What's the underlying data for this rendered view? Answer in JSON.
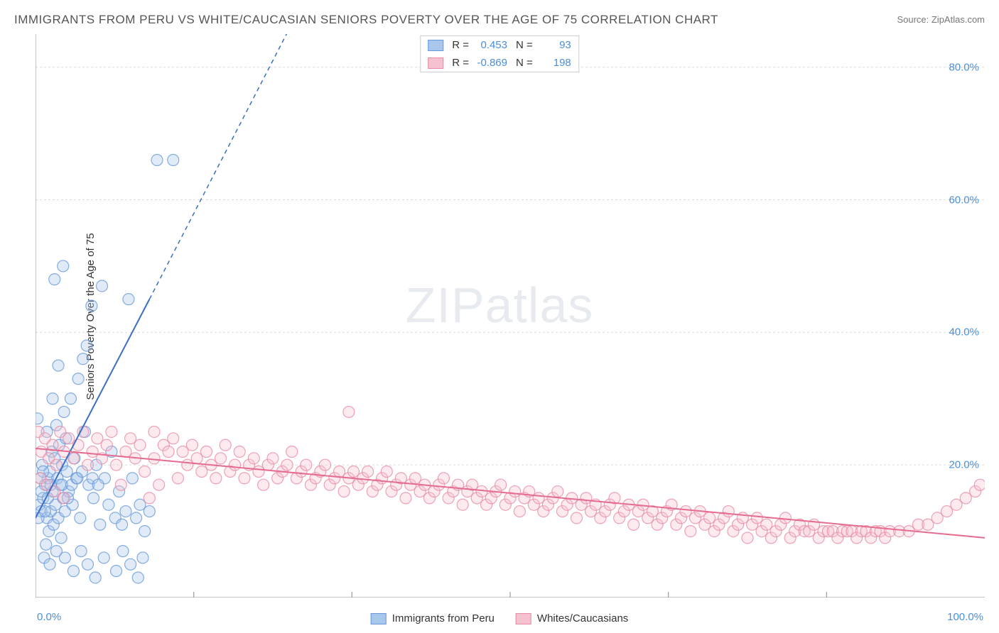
{
  "title": "IMMIGRANTS FROM PERU VS WHITE/CAUCASIAN SENIORS POVERTY OVER THE AGE OF 75 CORRELATION CHART",
  "source": "Source: ZipAtlas.com",
  "ylabel": "Seniors Poverty Over the Age of 75",
  "watermark_zip": "ZIP",
  "watermark_atlas": "atlas",
  "chart": {
    "type": "scatter",
    "background_color": "#ffffff",
    "grid_color": "#dcdcdc",
    "grid_dash": "3,3",
    "axis_color": "#888888",
    "xlim": [
      0,
      100
    ],
    "ylim": [
      0,
      85
    ],
    "x_min_label": "0.0%",
    "x_max_label": "100.0%",
    "yticks": [
      20,
      40,
      60,
      80
    ],
    "ytick_labels": [
      "20.0%",
      "40.0%",
      "60.0%",
      "80.0%"
    ],
    "xticks_minor": [
      16.67,
      33.33,
      50,
      66.67,
      83.33
    ],
    "marker_radius": 8,
    "marker_fill_opacity": 0.35,
    "marker_stroke_opacity": 0.8,
    "marker_stroke_width": 1.2,
    "trend_line_width": 2,
    "trend_dash_extrapolate": "6,5"
  },
  "series": [
    {
      "id": "peru",
      "label": "Immigrants from Peru",
      "color_fill": "#a9c7ec",
      "color_stroke": "#6699d8",
      "trend_color": "#3b6fc0",
      "R": "0.453",
      "N": "93",
      "trend": {
        "x1": 0,
        "y1": 12,
        "x2_solid": 12,
        "y2_solid": 45,
        "x2_dash": 38,
        "y2_dash": 117
      },
      "points": [
        [
          0.4,
          14
        ],
        [
          0.6,
          13
        ],
        [
          0.8,
          15
        ],
        [
          1.0,
          17
        ],
        [
          1.2,
          12
        ],
        [
          1.3,
          18
        ],
        [
          1.4,
          10
        ],
        [
          1.5,
          19
        ],
        [
          1.6,
          13
        ],
        [
          1.7,
          22
        ],
        [
          1.8,
          16
        ],
        [
          1.9,
          11
        ],
        [
          2.0,
          21
        ],
        [
          2.1,
          14
        ],
        [
          2.2,
          26
        ],
        [
          2.3,
          18
        ],
        [
          2.4,
          12
        ],
        [
          2.5,
          23
        ],
        [
          2.6,
          17
        ],
        [
          2.7,
          9
        ],
        [
          2.8,
          20
        ],
        [
          2.9,
          15
        ],
        [
          3.0,
          28
        ],
        [
          3.1,
          13
        ],
        [
          3.2,
          24
        ],
        [
          3.3,
          19
        ],
        [
          3.5,
          16
        ],
        [
          3.7,
          30
        ],
        [
          3.9,
          14
        ],
        [
          4.1,
          21
        ],
        [
          4.3,
          18
        ],
        [
          4.5,
          33
        ],
        [
          4.7,
          12
        ],
        [
          5.0,
          36
        ],
        [
          5.2,
          25
        ],
        [
          5.4,
          38
        ],
        [
          5.6,
          17
        ],
        [
          5.9,
          44
        ],
        [
          6.1,
          15
        ],
        [
          6.4,
          20
        ],
        [
          6.8,
          11
        ],
        [
          7.0,
          47
        ],
        [
          7.3,
          18
        ],
        [
          7.7,
          14
        ],
        [
          8.0,
          22
        ],
        [
          8.4,
          12
        ],
        [
          8.8,
          16
        ],
        [
          9.1,
          11
        ],
        [
          9.5,
          13
        ],
        [
          9.8,
          45
        ],
        [
          10.2,
          18
        ],
        [
          10.6,
          12
        ],
        [
          11.0,
          14
        ],
        [
          11.5,
          10
        ],
        [
          12.0,
          13
        ],
        [
          12.8,
          66
        ],
        [
          14.5,
          66
        ],
        [
          1.1,
          8
        ],
        [
          0.9,
          6
        ],
        [
          1.5,
          5
        ],
        [
          2.2,
          7
        ],
        [
          3.1,
          6
        ],
        [
          4.0,
          4
        ],
        [
          4.8,
          7
        ],
        [
          5.5,
          5
        ],
        [
          6.3,
          3
        ],
        [
          7.2,
          6
        ],
        [
          8.5,
          4
        ],
        [
          9.2,
          7
        ],
        [
          10.0,
          5
        ],
        [
          10.8,
          3
        ],
        [
          11.3,
          6
        ],
        [
          2.0,
          48
        ],
        [
          2.4,
          35
        ],
        [
          2.9,
          50
        ],
        [
          1.8,
          30
        ],
        [
          1.2,
          25
        ],
        [
          0.7,
          20
        ],
        [
          0.5,
          18
        ],
        [
          0.3,
          12
        ],
        [
          0.6,
          16
        ],
        [
          0.8,
          19
        ],
        [
          1.0,
          13
        ],
        [
          1.3,
          15
        ],
        [
          1.6,
          17
        ],
        [
          0.2,
          27
        ],
        [
          2.8,
          17
        ],
        [
          3.4,
          15
        ],
        [
          3.8,
          17
        ],
        [
          4.4,
          18
        ],
        [
          4.9,
          19
        ],
        [
          6.0,
          18
        ],
        [
          6.6,
          17
        ]
      ]
    },
    {
      "id": "white",
      "label": "Whites/Caucasians",
      "color_fill": "#f6c2cf",
      "color_stroke": "#e88ba5",
      "trend_color": "#e56b8f",
      "R": "-0.869",
      "N": "198",
      "trend": {
        "x1": 0,
        "y1": 22.5,
        "x2_solid": 100,
        "y2_solid": 9,
        "x2_dash": 100,
        "y2_dash": 9
      },
      "points": [
        [
          0.3,
          25
        ],
        [
          0.6,
          22
        ],
        [
          1.0,
          24
        ],
        [
          1.4,
          21
        ],
        [
          1.8,
          23
        ],
        [
          2.2,
          20
        ],
        [
          2.6,
          25
        ],
        [
          3.0,
          22
        ],
        [
          3.5,
          24
        ],
        [
          4.0,
          21
        ],
        [
          4.5,
          23
        ],
        [
          5.0,
          25
        ],
        [
          5.5,
          20
        ],
        [
          6.0,
          22
        ],
        [
          6.5,
          24
        ],
        [
          7.0,
          21
        ],
        [
          7.5,
          23
        ],
        [
          8.0,
          25
        ],
        [
          8.5,
          20
        ],
        [
          9.0,
          17
        ],
        [
          9.5,
          22
        ],
        [
          10.0,
          24
        ],
        [
          10.5,
          21
        ],
        [
          11.0,
          23
        ],
        [
          11.5,
          19
        ],
        [
          12.0,
          15
        ],
        [
          12.5,
          21
        ],
        [
          13.0,
          17
        ],
        [
          13.5,
          23
        ],
        [
          14.0,
          22
        ],
        [
          14.5,
          24
        ],
        [
          15.0,
          18
        ],
        [
          15.5,
          22
        ],
        [
          16.0,
          20
        ],
        [
          16.5,
          23
        ],
        [
          17.0,
          21
        ],
        [
          17.5,
          19
        ],
        [
          18.0,
          22
        ],
        [
          18.5,
          20
        ],
        [
          19.0,
          18
        ],
        [
          19.5,
          21
        ],
        [
          20.0,
          23
        ],
        [
          20.5,
          19
        ],
        [
          21.0,
          20
        ],
        [
          21.5,
          22
        ],
        [
          22.0,
          18
        ],
        [
          22.5,
          20
        ],
        [
          23.0,
          21
        ],
        [
          23.5,
          19
        ],
        [
          24.0,
          17
        ],
        [
          24.5,
          20
        ],
        [
          25.0,
          21
        ],
        [
          25.5,
          18
        ],
        [
          26.0,
          19
        ],
        [
          26.5,
          20
        ],
        [
          27.0,
          22
        ],
        [
          27.5,
          18
        ],
        [
          28.0,
          19
        ],
        [
          28.5,
          20
        ],
        [
          29.0,
          17
        ],
        [
          29.5,
          18
        ],
        [
          30.0,
          19
        ],
        [
          30.5,
          20
        ],
        [
          31.0,
          17
        ],
        [
          31.5,
          18
        ],
        [
          32.0,
          19
        ],
        [
          32.5,
          16
        ],
        [
          33.0,
          18
        ],
        [
          33.5,
          19
        ],
        [
          34.0,
          17
        ],
        [
          34.5,
          18
        ],
        [
          35.0,
          19
        ],
        [
          35.5,
          16
        ],
        [
          36.0,
          17
        ],
        [
          36.5,
          18
        ],
        [
          37.0,
          19
        ],
        [
          37.5,
          16
        ],
        [
          38.0,
          17
        ],
        [
          38.5,
          18
        ],
        [
          39.0,
          15
        ],
        [
          39.5,
          17
        ],
        [
          40.0,
          18
        ],
        [
          40.5,
          16
        ],
        [
          41.0,
          17
        ],
        [
          41.5,
          15
        ],
        [
          42.0,
          16
        ],
        [
          42.5,
          17
        ],
        [
          43.0,
          18
        ],
        [
          43.5,
          15
        ],
        [
          44.0,
          16
        ],
        [
          44.5,
          17
        ],
        [
          45.0,
          14
        ],
        [
          45.5,
          16
        ],
        [
          46.0,
          17
        ],
        [
          46.5,
          15
        ],
        [
          47.0,
          16
        ],
        [
          47.5,
          14
        ],
        [
          48.0,
          15
        ],
        [
          48.5,
          16
        ],
        [
          49.0,
          17
        ],
        [
          49.5,
          14
        ],
        [
          50.0,
          15
        ],
        [
          50.5,
          16
        ],
        [
          51.0,
          13
        ],
        [
          51.5,
          15
        ],
        [
          52.0,
          16
        ],
        [
          52.5,
          14
        ],
        [
          53.0,
          15
        ],
        [
          53.5,
          13
        ],
        [
          54.0,
          14
        ],
        [
          54.5,
          15
        ],
        [
          55.0,
          16
        ],
        [
          55.5,
          13
        ],
        [
          56.0,
          14
        ],
        [
          56.5,
          15
        ],
        [
          57.0,
          12
        ],
        [
          57.5,
          14
        ],
        [
          58.0,
          15
        ],
        [
          58.5,
          13
        ],
        [
          59.0,
          14
        ],
        [
          59.5,
          12
        ],
        [
          60.0,
          13
        ],
        [
          60.5,
          14
        ],
        [
          61.0,
          15
        ],
        [
          61.5,
          12
        ],
        [
          62.0,
          13
        ],
        [
          62.5,
          14
        ],
        [
          63.0,
          11
        ],
        [
          63.5,
          13
        ],
        [
          64.0,
          14
        ],
        [
          64.5,
          12
        ],
        [
          65.0,
          13
        ],
        [
          65.5,
          11
        ],
        [
          66.0,
          12
        ],
        [
          66.5,
          13
        ],
        [
          67.0,
          14
        ],
        [
          67.5,
          11
        ],
        [
          68.0,
          12
        ],
        [
          68.5,
          13
        ],
        [
          69.0,
          10
        ],
        [
          69.5,
          12
        ],
        [
          70.0,
          13
        ],
        [
          70.5,
          11
        ],
        [
          71.0,
          12
        ],
        [
          71.5,
          10
        ],
        [
          72.0,
          11
        ],
        [
          72.5,
          12
        ],
        [
          73.0,
          13
        ],
        [
          73.5,
          10
        ],
        [
          74.0,
          11
        ],
        [
          74.5,
          12
        ],
        [
          75.0,
          9
        ],
        [
          75.5,
          11
        ],
        [
          76.0,
          12
        ],
        [
          76.5,
          10
        ],
        [
          77.0,
          11
        ],
        [
          77.5,
          9
        ],
        [
          78.0,
          10
        ],
        [
          78.5,
          11
        ],
        [
          79.0,
          12
        ],
        [
          79.5,
          9
        ],
        [
          80.0,
          10
        ],
        [
          80.5,
          11
        ],
        [
          81.0,
          10
        ],
        [
          81.5,
          10
        ],
        [
          82.0,
          11
        ],
        [
          82.5,
          9
        ],
        [
          83.0,
          10
        ],
        [
          83.5,
          10
        ],
        [
          84.0,
          10
        ],
        [
          84.5,
          9
        ],
        [
          85.0,
          10
        ],
        [
          85.5,
          10
        ],
        [
          86.0,
          10
        ],
        [
          86.5,
          9
        ],
        [
          87.0,
          10
        ],
        [
          87.5,
          10
        ],
        [
          88.0,
          9
        ],
        [
          88.5,
          10
        ],
        [
          89.0,
          10
        ],
        [
          89.5,
          9
        ],
        [
          90.0,
          10
        ],
        [
          91.0,
          10
        ],
        [
          92.0,
          10
        ],
        [
          93.0,
          11
        ],
        [
          94.0,
          11
        ],
        [
          95.0,
          12
        ],
        [
          96.0,
          13
        ],
        [
          97.0,
          14
        ],
        [
          98.0,
          15
        ],
        [
          99.0,
          16
        ],
        [
          99.5,
          17
        ],
        [
          33.0,
          28
        ],
        [
          0.5,
          18
        ],
        [
          1.2,
          17
        ],
        [
          2.0,
          16
        ],
        [
          3.0,
          15
        ],
        [
          12.5,
          25
        ]
      ]
    }
  ],
  "legend_top": {
    "R_label": "R =",
    "N_label": "N ="
  }
}
